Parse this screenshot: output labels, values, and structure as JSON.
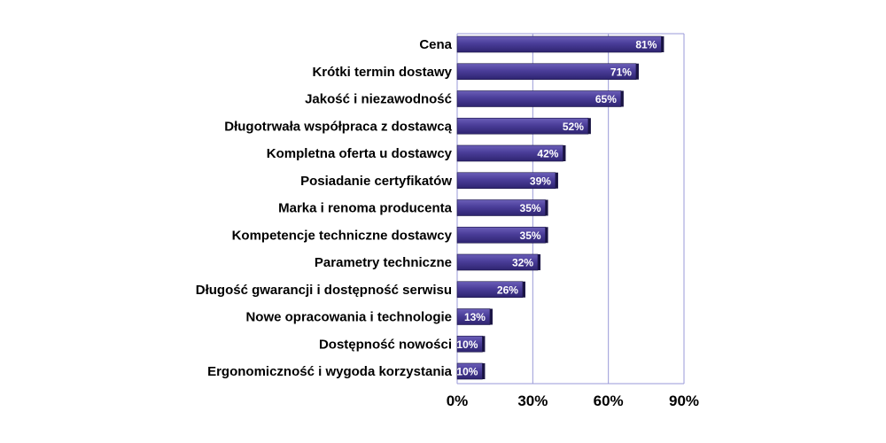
{
  "chart_data": {
    "type": "bar",
    "orientation": "horizontal",
    "categories": [
      "Cena",
      "Krótki termin dostawy",
      "Jakość i niezawodność",
      "Długotrwała współpraca z dostawcą",
      "Kompletna oferta u dostawcy",
      "Posiadanie certyfikatów",
      "Marka i renoma producenta",
      "Kompetencje techniczne dostawcy",
      "Parametry techniczne",
      "Długość gwarancji i dostępność serwisu",
      "Nowe opracowania i technologie",
      "Dostępność nowości",
      "Ergonomiczność i wygoda korzystania"
    ],
    "values": [
      81,
      71,
      65,
      52,
      42,
      39,
      35,
      35,
      32,
      26,
      13,
      10,
      10
    ],
    "value_labels": [
      "81%",
      "71%",
      "65%",
      "52%",
      "42%",
      "39%",
      "35%",
      "35%",
      "32%",
      "26%",
      "13%",
      "10%",
      "10%"
    ],
    "xlim": [
      0,
      90
    ],
    "xticks": [
      0,
      30,
      60,
      90
    ],
    "xtick_labels": [
      "0%",
      "30%",
      "60%",
      "90%"
    ],
    "grid": true,
    "legend": "none",
    "colors": {
      "bar_top": "#6b5fb8",
      "bar_main": "#4a3d99",
      "bar_bottom": "#2e2470",
      "bar_shadow": "#1a1444",
      "gridline": "#9a9ad8",
      "value_text": "#ffffff",
      "text": "#000000"
    }
  }
}
